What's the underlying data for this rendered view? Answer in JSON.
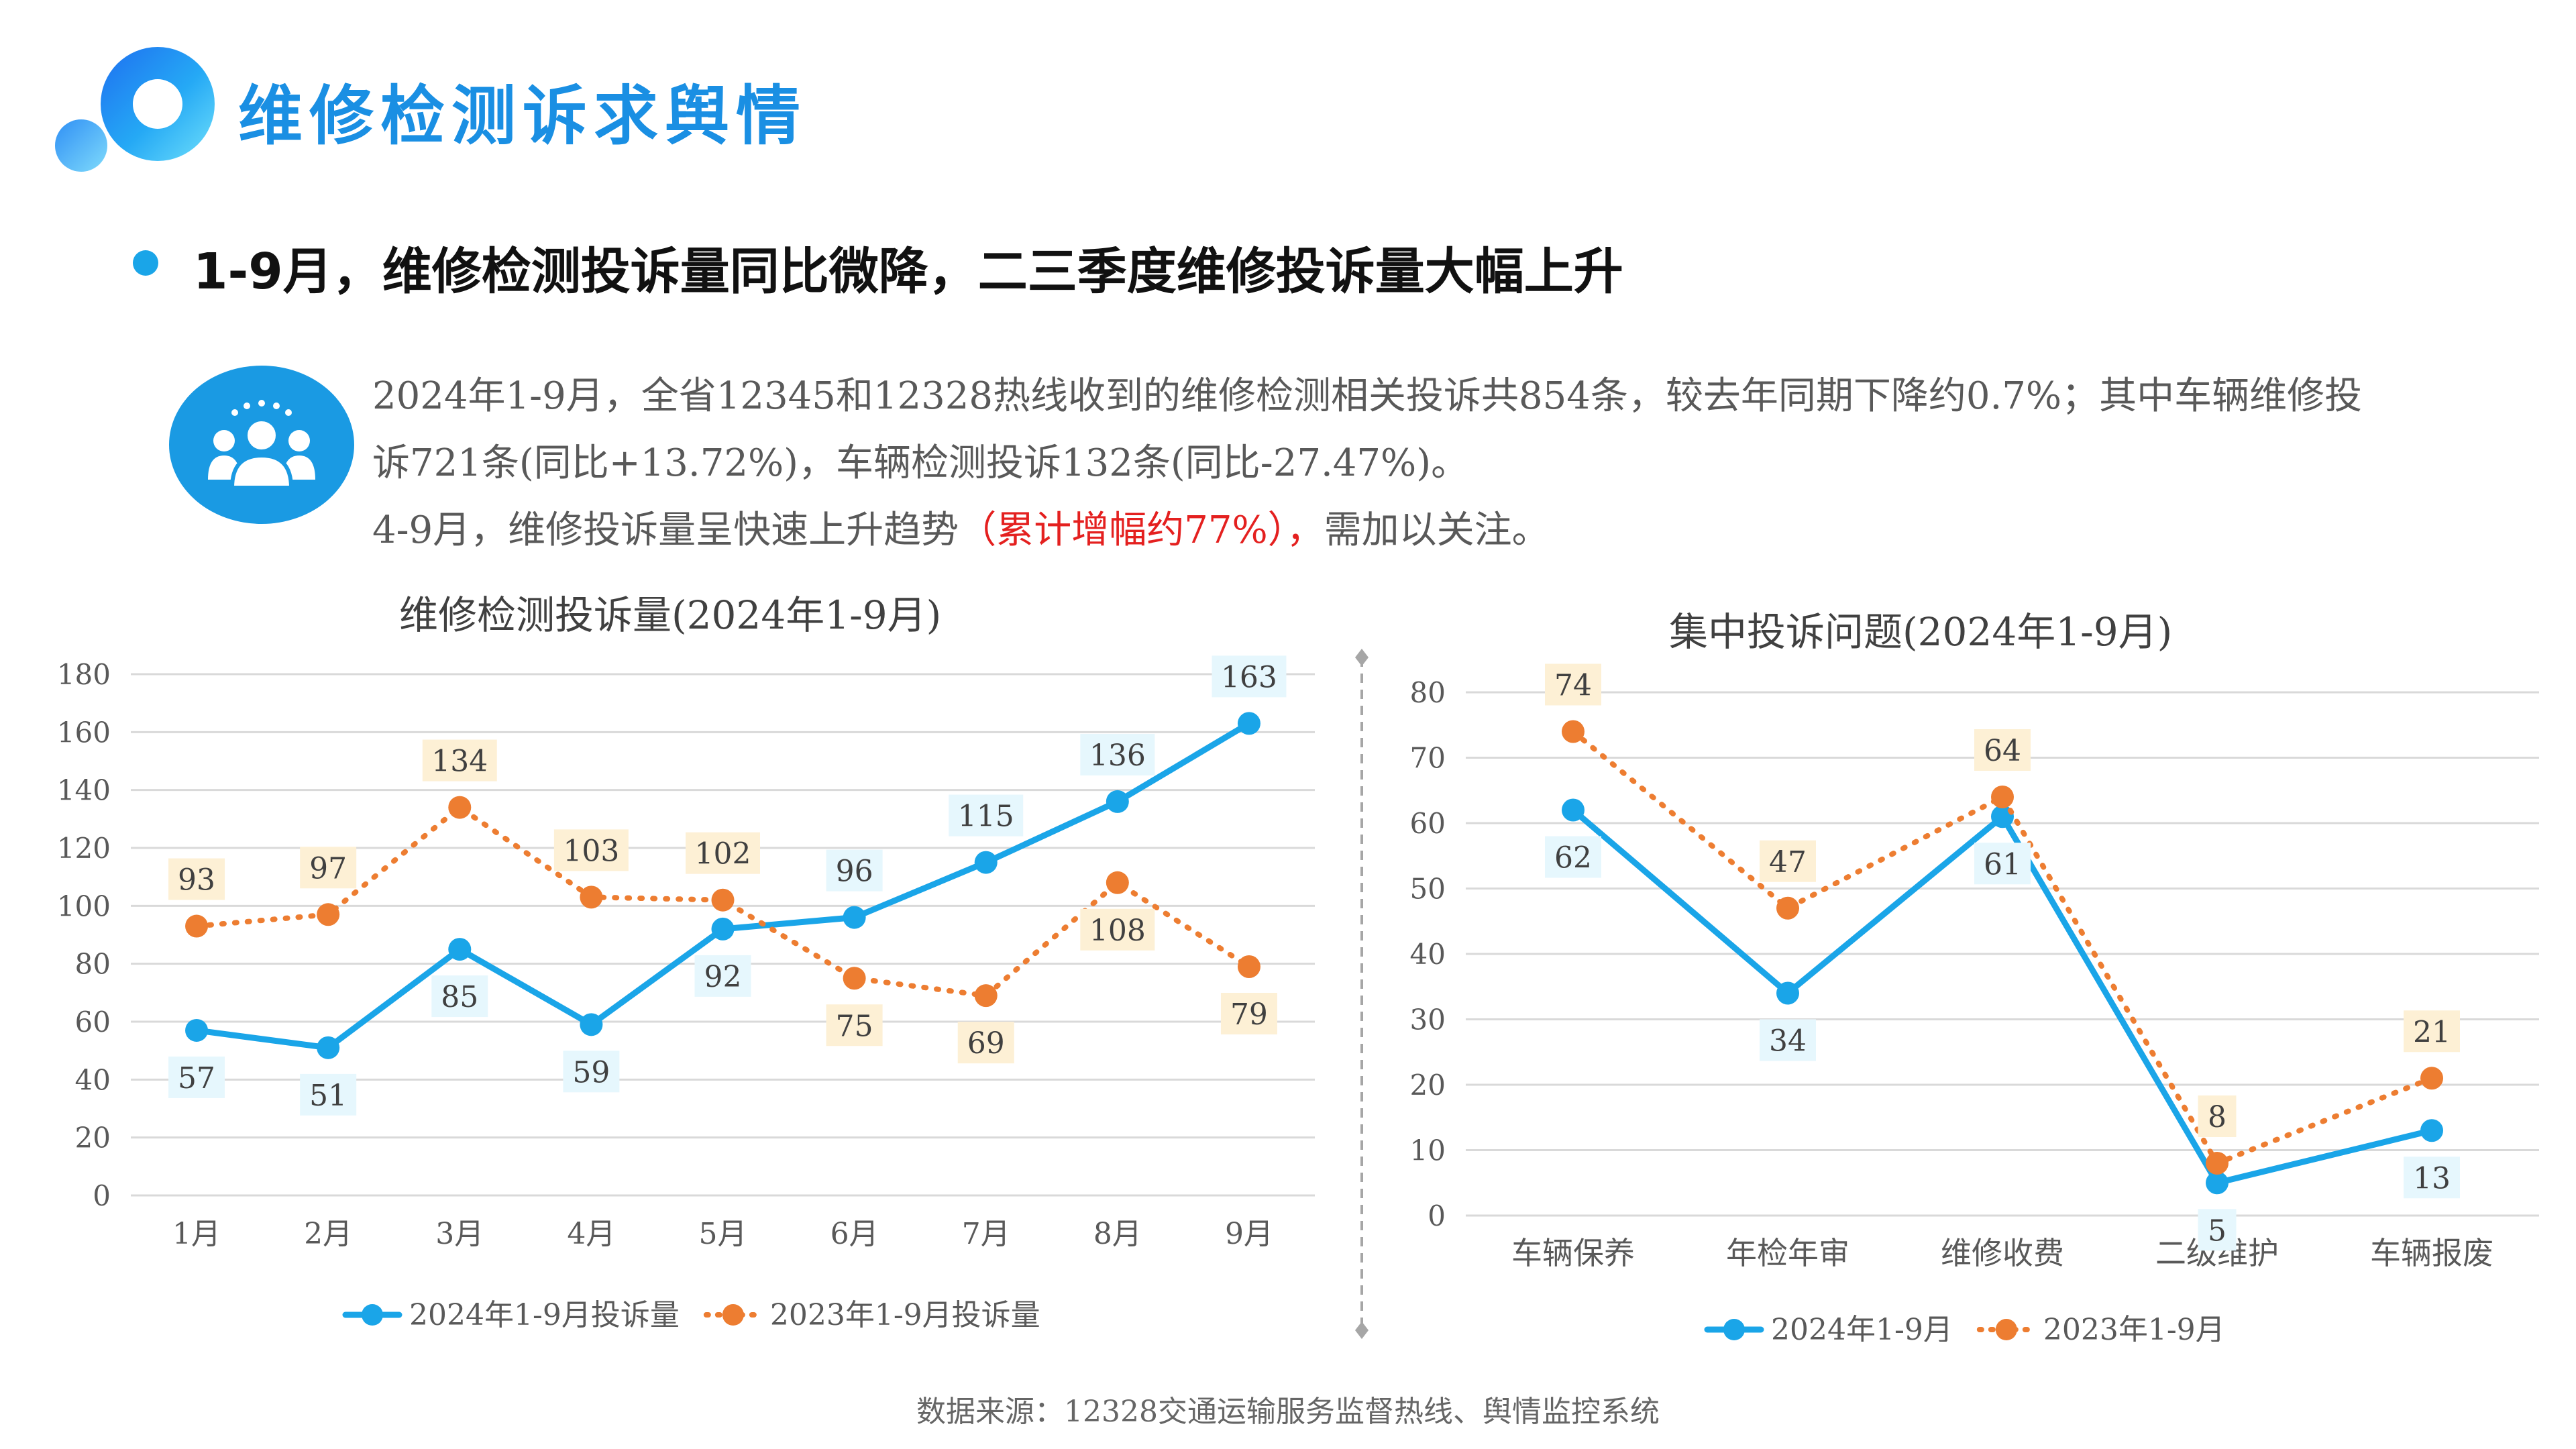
{
  "page": {
    "title": "维修检测诉求舆情",
    "headline": "1-9月，维修检测投诉量同比微降，二三季度维修投诉量大幅上升",
    "paragraph": {
      "line1": "2024年1-9月，全省12345和12328热线收到的维修检测相关投诉共854条，较去年同期下降约0.7%；其中车辆维修投",
      "line2": "诉721条(同比+13.72%)，车辆检测投诉132条(同比-27.47%)。",
      "line3_pre": "4-9月，维修投诉量呈快速上升趋势",
      "line3_highlight": "（累计增幅约77%），",
      "line3_post": "需加以关注。"
    },
    "source": "数据来源：12328交通运输服务监督热线、舆情监控系统",
    "colors": {
      "blue": "#1aa5e8",
      "orange": "#ed7d31",
      "title": "#1a8fe3",
      "highlight": "#e4201f"
    },
    "icons": {
      "logo": "ring-logo-icon",
      "badge": "people-group-icon"
    }
  },
  "chart_data": [
    {
      "type": "line",
      "title": "维修检测投诉量(2024年1-9月)",
      "categories": [
        "1月",
        "2月",
        "3月",
        "4月",
        "5月",
        "6月",
        "7月",
        "8月",
        "9月"
      ],
      "ylim": [
        0,
        180
      ],
      "yticks": [
        0,
        20,
        40,
        60,
        80,
        100,
        120,
        140,
        160,
        180
      ],
      "grid": true,
      "legend": "bottom",
      "series": [
        {
          "name": "2024年1-9月投诉量",
          "style": "solid",
          "color": "#1aa5e8",
          "values": [
            57,
            51,
            85,
            59,
            92,
            96,
            115,
            136,
            163
          ]
        },
        {
          "name": "2023年1-9月投诉量",
          "style": "dotted",
          "color": "#ed7d31",
          "values": [
            93,
            97,
            134,
            103,
            102,
            75,
            69,
            108,
            79
          ]
        }
      ]
    },
    {
      "type": "line",
      "title": "集中投诉问题(2024年1-9月)",
      "categories": [
        "车辆保养",
        "年检年审",
        "维修收费",
        "二级维护",
        "车辆报废"
      ],
      "ylim": [
        0,
        80
      ],
      "yticks": [
        0,
        10,
        20,
        30,
        40,
        50,
        60,
        70,
        80
      ],
      "grid": true,
      "legend": "bottom",
      "series": [
        {
          "name": "2024年1-9月",
          "style": "solid",
          "color": "#1aa5e8",
          "values": [
            62,
            34,
            61,
            5,
            13
          ]
        },
        {
          "name": "2023年1-9月",
          "style": "dotted",
          "color": "#ed7d31",
          "values": [
            74,
            47,
            64,
            8,
            21
          ]
        }
      ]
    }
  ]
}
